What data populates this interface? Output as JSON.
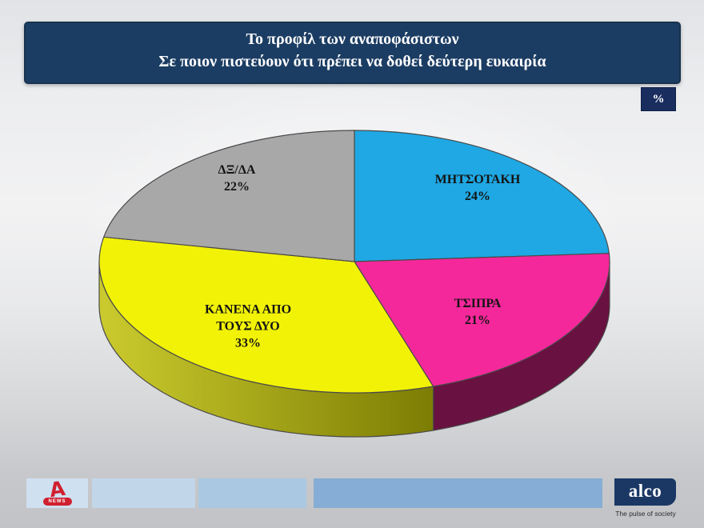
{
  "title": {
    "line1": "Το προφίλ των αναποφάσιστων",
    "line2": "Σε ποιον πιστεύουν ότι πρέπει να δοθεί δεύτερη ευκαιρία"
  },
  "unit_badge": "%",
  "chart_data": {
    "type": "pie",
    "title": "Το προφίλ των αναποφάσιστων — Σε ποιον πιστεύουν ότι πρέπει να δοθεί δεύτερη ευκαιρία",
    "unit": "%",
    "style": "3d-pie",
    "start_angle_deg": 0,
    "direction": "clockwise",
    "slices": [
      {
        "label": "ΜΗΤΣΟΤΑΚΗ",
        "label_lines": [
          "ΜΗΤΣΟΤΑΚΗ"
        ],
        "value": 24,
        "pct_label": "24%",
        "color": "#1fa8e4",
        "side_color": "#14648a"
      },
      {
        "label": "ΤΣΙΠΡΑ",
        "label_lines": [
          "ΤΣΙΠΡΑ"
        ],
        "value": 21,
        "pct_label": "21%",
        "color": "#f5289b",
        "side_color": "#691140"
      },
      {
        "label": "ΚΑΝΕΝΑ ΑΠΟ ΤΟΥΣ ΔΥΟ",
        "label_lines": [
          "ΚΑΝΕΝΑ ΑΠΟ",
          "ΤΟΥΣ ΔΥΟ"
        ],
        "value": 33,
        "pct_label": "33%",
        "color": "#f2f207",
        "side_color_from": "#cbcb2e",
        "side_color_to": "#7d7d04"
      },
      {
        "label": "ΔΞ/ΔΑ",
        "label_lines": [
          "ΔΞ/ΔΑ"
        ],
        "value": 22,
        "pct_label": "22%",
        "color": "#a9a8a8",
        "side_color": "#6f6f6f"
      }
    ]
  },
  "footer": {
    "alpha": {
      "letter": "A",
      "news": "NEWS"
    },
    "alco": {
      "name": "alco",
      "tagline": "The pulse of society"
    }
  },
  "colors": {
    "banner_navy": "#1c3d63",
    "badge_navy": "#1a2d5f",
    "alpha_red": "#d01f2f",
    "alco_navy": "#1b3865",
    "label_text": "#141414"
  }
}
